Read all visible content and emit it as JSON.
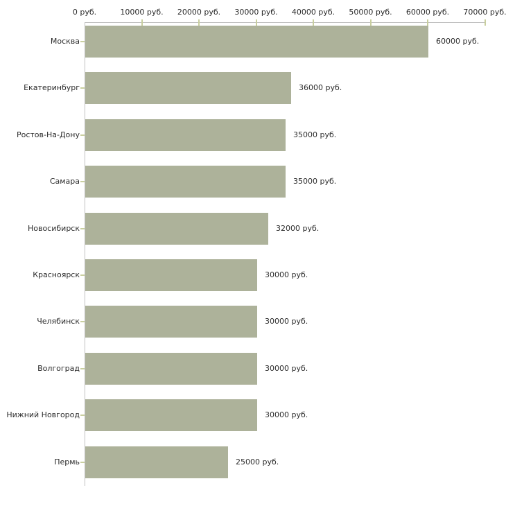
{
  "chart_data": {
    "type": "bar",
    "orientation": "horizontal",
    "title": "",
    "xlabel": "",
    "ylabel": "",
    "categories": [
      "Москва",
      "Екатеринбург",
      "Ростов-На-Дону",
      "Самара",
      "Новосибирск",
      "Красноярск",
      "Челябинск",
      "Волгоград",
      "Нижний Новгород",
      "Пермь"
    ],
    "values": [
      60000,
      36000,
      35000,
      35000,
      32000,
      30000,
      30000,
      30000,
      30000,
      25000
    ],
    "value_labels": [
      "60000 руб.",
      "36000 руб.",
      "35000 руб.",
      "35000 руб.",
      "32000 руб.",
      "30000 руб.",
      "30000 руб.",
      "30000 руб.",
      "30000 руб.",
      "25000 руб."
    ],
    "x_ticks": {
      "values": [
        0,
        10000,
        20000,
        30000,
        40000,
        50000,
        60000,
        70000
      ],
      "labels": [
        "0 руб.",
        "10000 руб.",
        "20000 руб.",
        "30000 руб.",
        "40000 руб.",
        "50000 руб.",
        "60000 руб.",
        "70000 руб."
      ]
    },
    "xlim": [
      0,
      70000
    ],
    "grid": false,
    "legend": false,
    "axis_position": "top",
    "colors": {
      "bar": "#adb29a",
      "axis_line": "#c0c0c0",
      "tick_mark": "#c9cf9f",
      "text": "#2b2b2b",
      "background": "#ffffff"
    }
  }
}
